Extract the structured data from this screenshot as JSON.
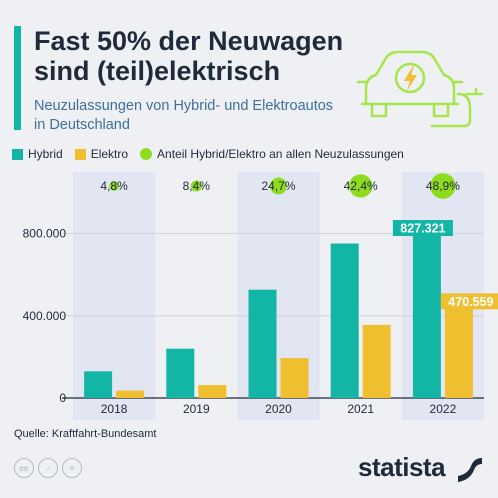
{
  "header": {
    "title": "Fast 50% der Neuwagen sind (teil)elektrisch",
    "subtitle": "Neuzulassungen von Hybrid- und Elektroautos in Deutschland"
  },
  "legend": {
    "hybrid": "Hybrid",
    "elektro": "Elektro",
    "share": "Anteil Hybrid/Elektro an allen Neuzulassungen"
  },
  "colors": {
    "hybrid": "#13b6a5",
    "elektro": "#efbf2f",
    "share": "#8fdc1e",
    "column_band": "#e1e6f2"
  },
  "footer": {
    "source": "Quelle: Kraftfahrt-Bundesamt",
    "brand": "statista"
  },
  "icons": [
    "electric-car-icon",
    "cc-license-icon",
    "attribution-icon",
    "no-derivatives-icon",
    "statista-logo-icon"
  ],
  "chart_data": {
    "type": "bar",
    "categories": [
      "2018",
      "2019",
      "2020",
      "2021",
      "2022"
    ],
    "series": [
      {
        "name": "Hybrid",
        "values": [
          130000,
          240000,
          527000,
          752000,
          827321
        ]
      },
      {
        "name": "Elektro",
        "values": [
          36000,
          63000,
          194000,
          356000,
          470559
        ]
      }
    ],
    "share": {
      "name": "Anteil Hybrid/Elektro an allen Neuzulassungen",
      "values": [
        4.8,
        8.4,
        24.7,
        42.4,
        48.9
      ],
      "labels": [
        "4,8%",
        "8,4%",
        "24,7%",
        "42,4%",
        "48,9%"
      ]
    },
    "value_labels": [
      {
        "category": "2022",
        "series": "Hybrid",
        "text": "827.321"
      },
      {
        "category": "2022",
        "series": "Elektro",
        "text": "470.559"
      }
    ],
    "yticks": [
      {
        "value": 0,
        "label": "0"
      },
      {
        "value": 400000,
        "label": "400.000"
      },
      {
        "value": 800000,
        "label": "800.000"
      }
    ],
    "ylim": [
      0,
      1100000
    ],
    "xlabel": "",
    "ylabel": "",
    "grid": true
  }
}
